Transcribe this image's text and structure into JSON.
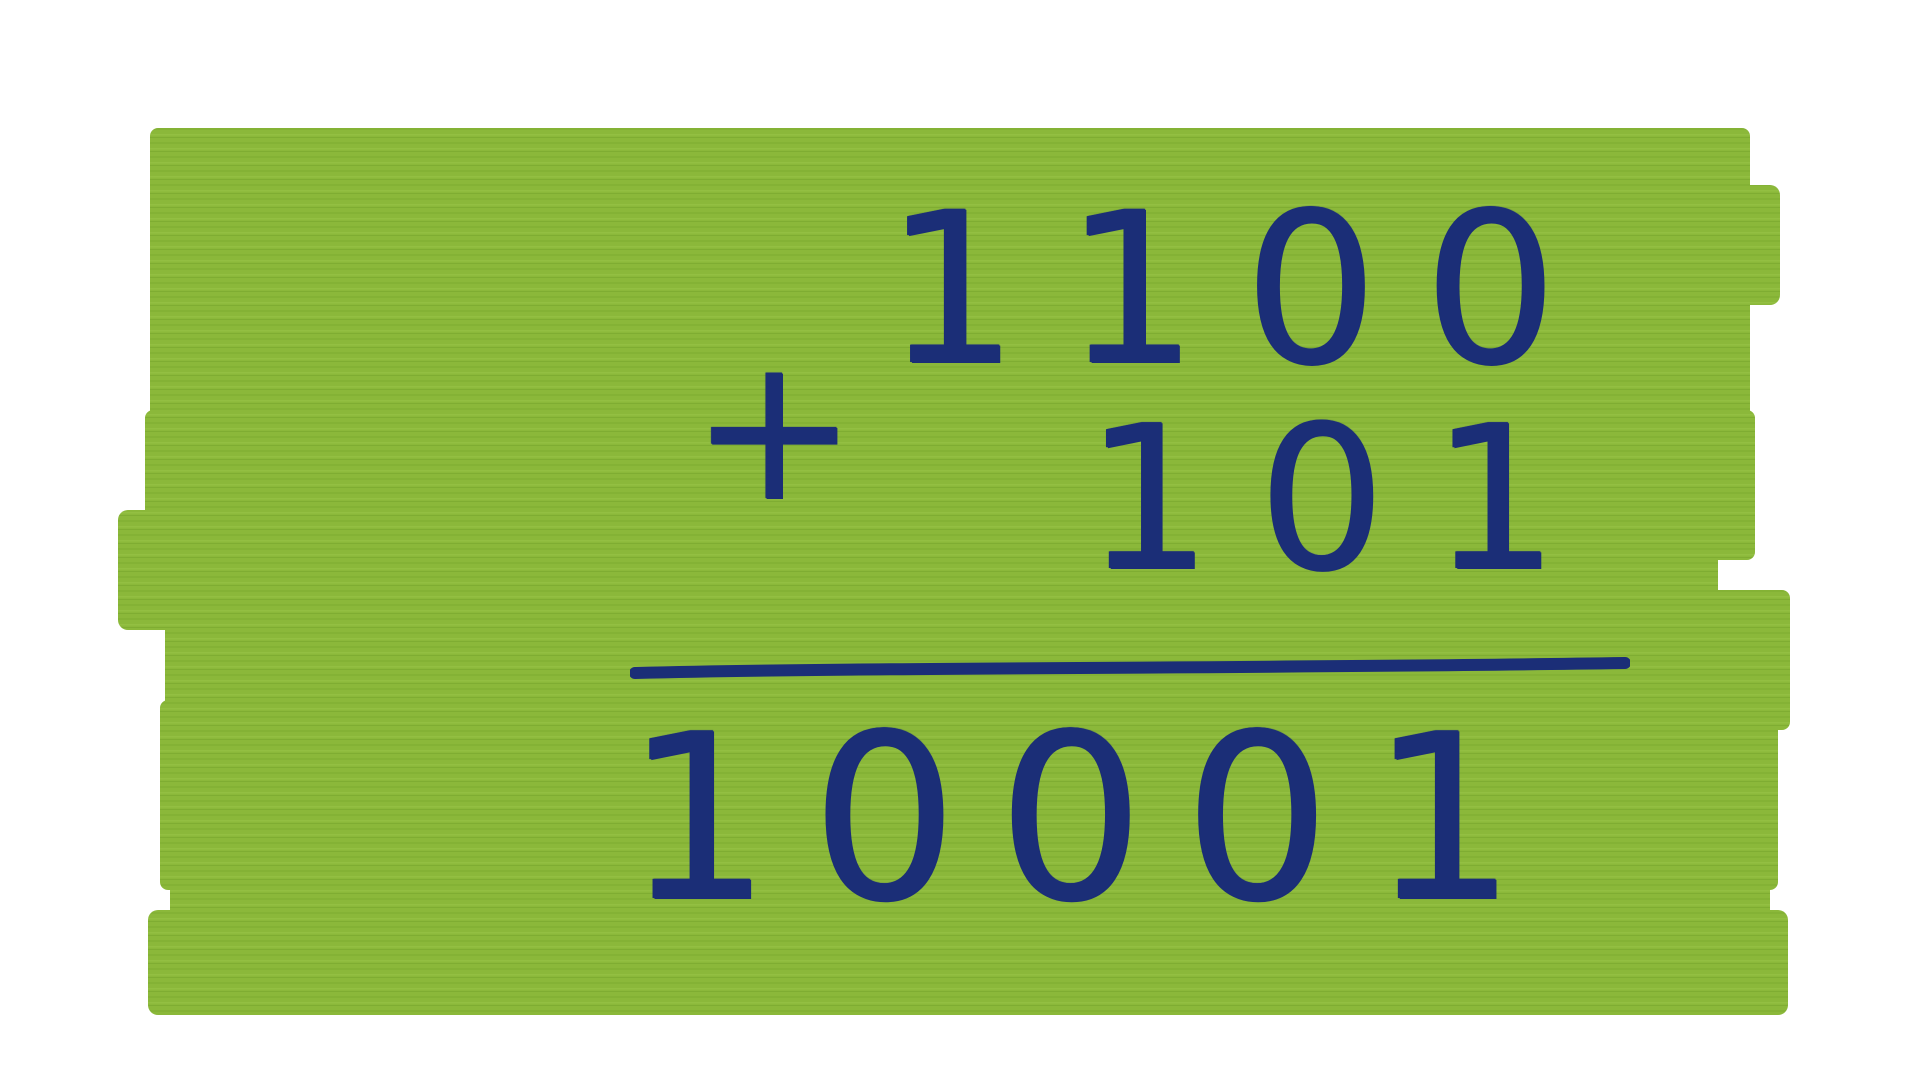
{
  "colors": {
    "brush": "#8bb83a",
    "brush_dark": "#79a82c",
    "ink": "#1b2e77",
    "background": "#ffffff"
  },
  "equation": {
    "operator": "+",
    "addend_1": "1100",
    "addend_2": "101",
    "result": "10001"
  }
}
